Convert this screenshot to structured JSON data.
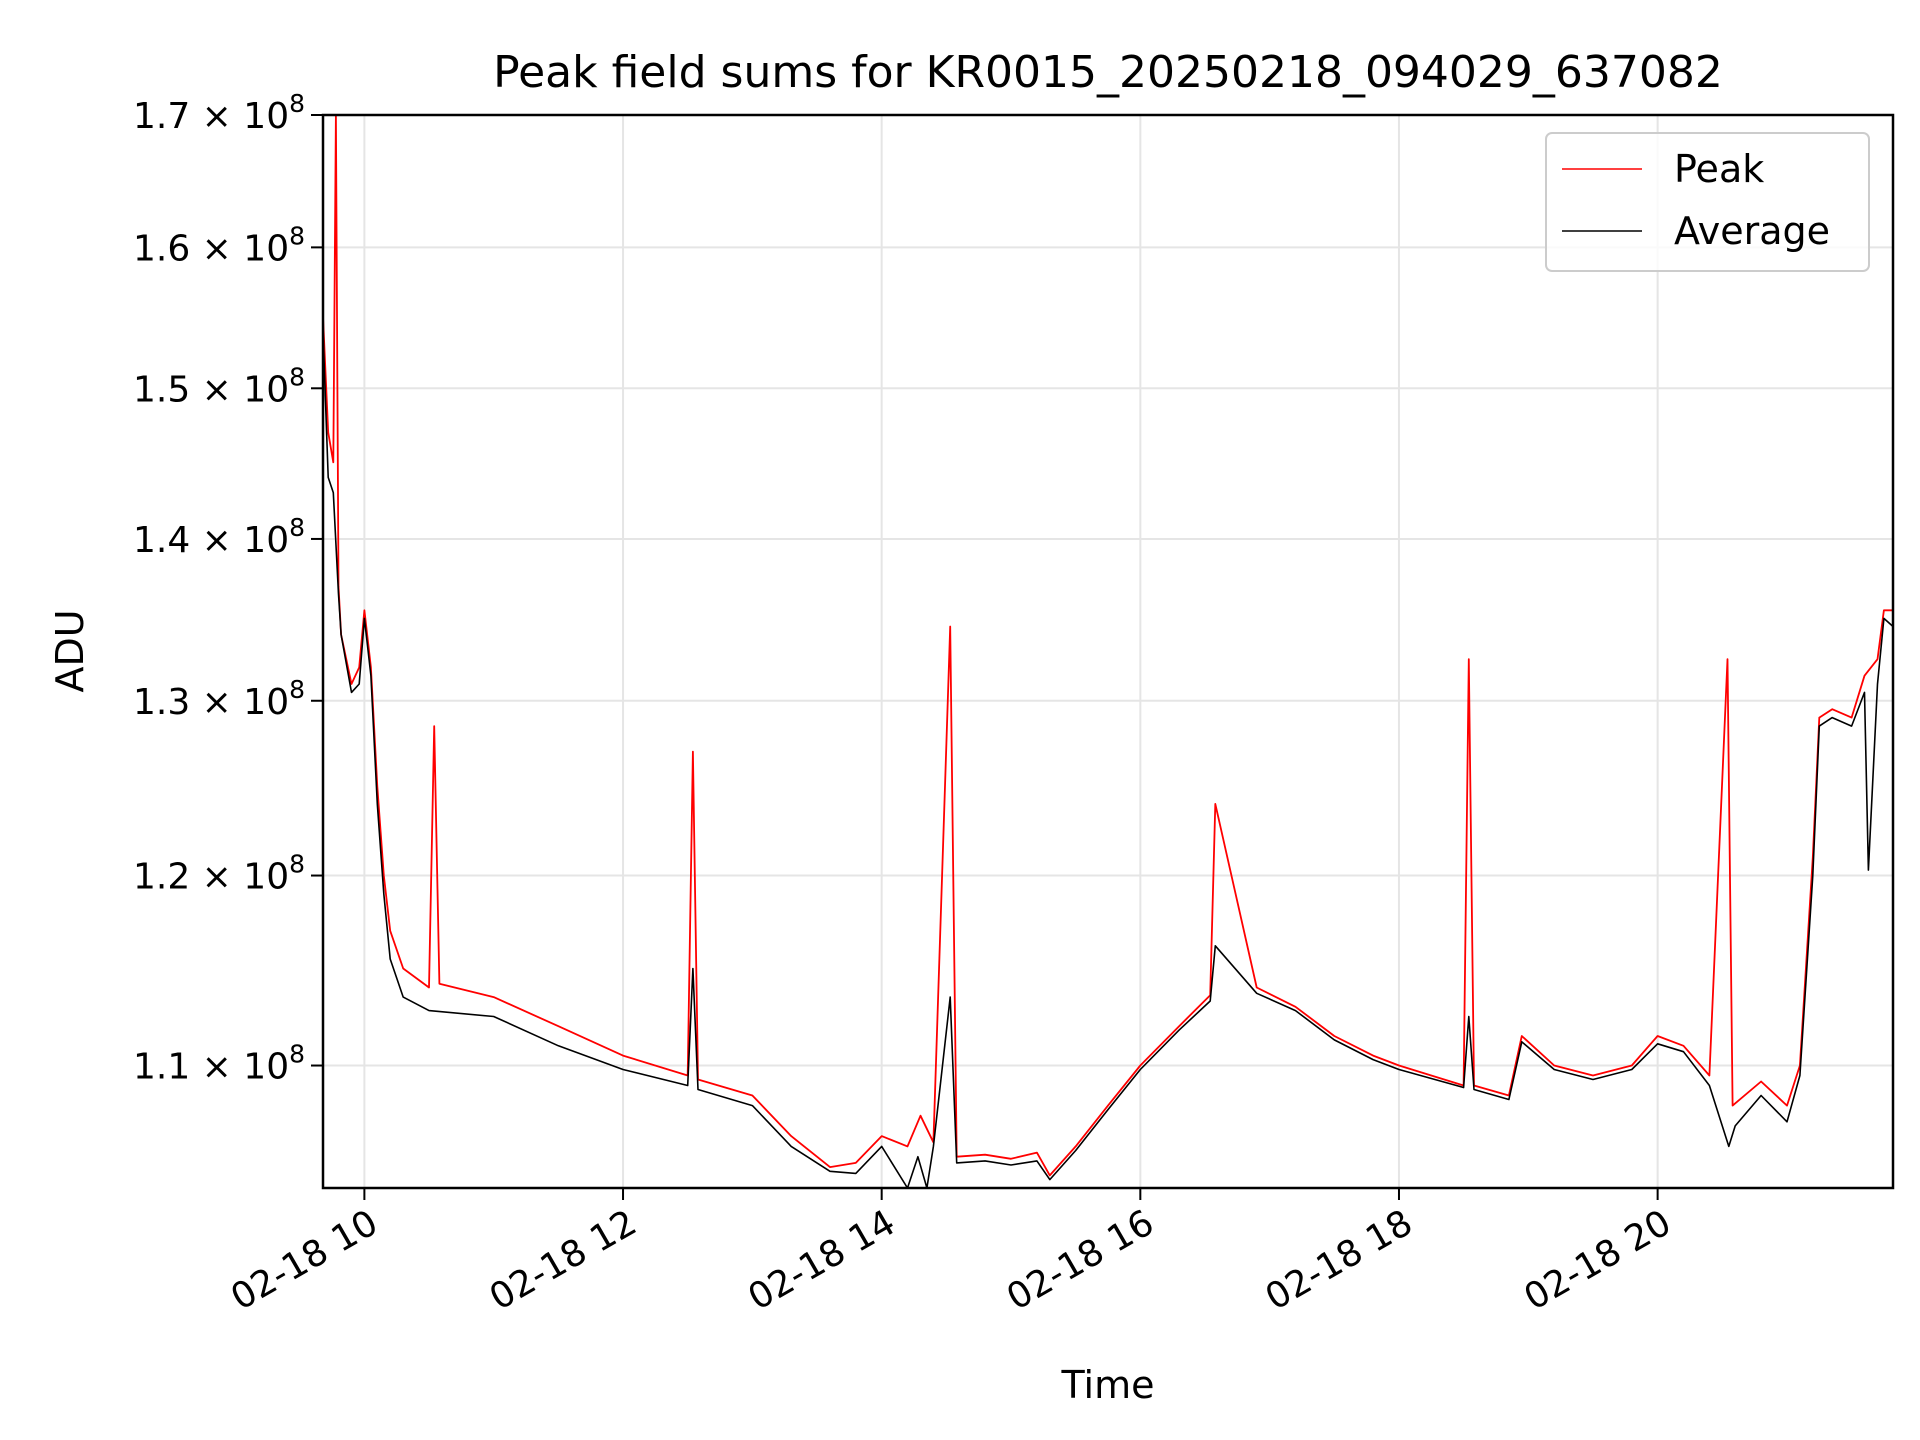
{
  "chart_data": {
    "type": "line",
    "title": "Peak field sums for KR0015_20250218_094029_637082",
    "xlabel": "Time",
    "ylabel": "ADU",
    "yscale": "log",
    "ylim": [
      104000000,
      170000000
    ],
    "xlim_hours": [
      9.68,
      21.82
    ],
    "grid": true,
    "legend_position": "top-right",
    "x_ticks": [
      {
        "hour": 10,
        "label": "02-18 10"
      },
      {
        "hour": 12,
        "label": "02-18 12"
      },
      {
        "hour": 14,
        "label": "02-18 14"
      },
      {
        "hour": 16,
        "label": "02-18 16"
      },
      {
        "hour": 18,
        "label": "02-18 18"
      },
      {
        "hour": 20,
        "label": "02-18 20"
      }
    ],
    "y_ticks": [
      {
        "value": 110000000,
        "mantissa": "1.1",
        "base": "× 10",
        "exp": "8"
      },
      {
        "value": 120000000,
        "mantissa": "1.2",
        "base": "× 10",
        "exp": "8"
      },
      {
        "value": 130000000,
        "mantissa": "1.3",
        "base": "× 10",
        "exp": "8"
      },
      {
        "value": 140000000,
        "mantissa": "1.4",
        "base": "× 10",
        "exp": "8"
      },
      {
        "value": 150000000,
        "mantissa": "1.5",
        "base": "× 10",
        "exp": "8"
      },
      {
        "value": 160000000,
        "mantissa": "1.6",
        "base": "× 10",
        "exp": "8"
      },
      {
        "value": 170000000,
        "mantissa": "1.7",
        "base": "× 10",
        "exp": "8"
      }
    ],
    "series": [
      {
        "name": "Peak",
        "color": "#ff0000",
        "x_hours": [
          9.68,
          9.72,
          9.76,
          9.78,
          9.8,
          9.82,
          9.9,
          9.96,
          10.0,
          10.05,
          10.1,
          10.15,
          10.2,
          10.3,
          10.5,
          10.54,
          10.58,
          11.0,
          11.5,
          12.0,
          12.5,
          12.54,
          12.58,
          13.0,
          13.3,
          13.6,
          13.8,
          14.0,
          14.2,
          14.3,
          14.4,
          14.53,
          14.58,
          14.8,
          15.0,
          15.2,
          15.3,
          15.5,
          15.75,
          16.0,
          16.3,
          16.54,
          16.58,
          16.9,
          17.2,
          17.5,
          17.8,
          18.0,
          18.5,
          18.54,
          18.58,
          18.85,
          18.95,
          19.2,
          19.5,
          19.8,
          20.0,
          20.2,
          20.4,
          20.54,
          20.58,
          20.8,
          21.0,
          21.1,
          21.2,
          21.25,
          21.35,
          21.5,
          21.6,
          21.7,
          21.75,
          21.82
        ],
        "values": [
          155000000,
          147000000,
          145000000,
          170000000,
          137000000,
          134000000,
          131000000,
          132000000,
          135500000,
          132000000,
          125000000,
          120000000,
          117000000,
          115000000,
          114000000,
          128500000,
          114200000,
          113500000,
          112000000,
          110500000,
          109500000,
          127000000,
          109300000,
          108500000,
          106500000,
          105000000,
          105200000,
          106500000,
          106000000,
          107500000,
          106200000,
          134500000,
          105500000,
          105600000,
          105400000,
          105700000,
          104600000,
          106000000,
          108000000,
          110000000,
          112000000,
          113600000,
          124000000,
          114000000,
          113000000,
          111500000,
          110500000,
          110000000,
          109000000,
          132500000,
          109000000,
          108500000,
          111500000,
          110000000,
          109500000,
          110000000,
          111500000,
          111000000,
          109500000,
          132500000,
          108000000,
          109200000,
          108000000,
          110000000,
          121000000,
          129000000,
          129500000,
          129000000,
          131500000,
          132500000,
          135500000,
          135500000
        ]
      },
      {
        "name": "Average",
        "color": "#000000",
        "x_hours": [
          9.68,
          9.72,
          9.76,
          9.8,
          9.82,
          9.9,
          9.96,
          10.0,
          10.05,
          10.1,
          10.15,
          10.2,
          10.3,
          10.5,
          11.0,
          11.5,
          12.0,
          12.5,
          12.54,
          12.58,
          13.0,
          13.3,
          13.6,
          13.8,
          14.0,
          14.2,
          14.28,
          14.35,
          14.4,
          14.53,
          14.58,
          14.8,
          15.0,
          15.2,
          15.3,
          15.5,
          15.75,
          16.0,
          16.3,
          16.54,
          16.58,
          16.9,
          17.2,
          17.5,
          17.8,
          18.0,
          18.5,
          18.54,
          18.58,
          18.85,
          18.95,
          19.2,
          19.5,
          19.8,
          20.0,
          20.2,
          20.4,
          20.55,
          20.6,
          20.8,
          21.0,
          21.1,
          21.2,
          21.25,
          21.35,
          21.5,
          21.6,
          21.63,
          21.7,
          21.75,
          21.82
        ],
        "values": [
          154000000,
          144000000,
          143000000,
          136500000,
          134000000,
          130500000,
          131000000,
          135000000,
          131500000,
          124000000,
          119000000,
          115500000,
          113500000,
          112800000,
          112500000,
          111000000,
          109800000,
          109000000,
          115000000,
          108800000,
          108000000,
          106000000,
          104800000,
          104700000,
          106000000,
          104000000,
          105500000,
          104000000,
          106000000,
          113500000,
          105200000,
          105300000,
          105100000,
          105300000,
          104400000,
          105800000,
          107800000,
          109800000,
          111800000,
          113300000,
          116200000,
          113700000,
          112800000,
          111300000,
          110300000,
          109800000,
          108900000,
          112500000,
          108800000,
          108300000,
          111200000,
          109800000,
          109300000,
          109800000,
          111100000,
          110700000,
          109000000,
          106000000,
          107000000,
          108500000,
          107200000,
          109500000,
          120000000,
          128500000,
          129000000,
          128500000,
          130500000,
          120300000,
          131000000,
          135000000,
          134500000
        ]
      }
    ]
  }
}
